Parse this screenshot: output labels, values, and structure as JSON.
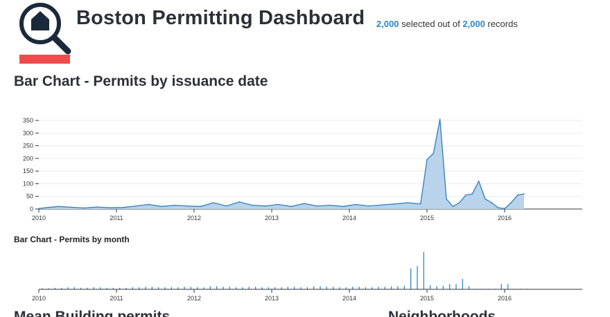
{
  "header": {
    "title": "Boston Permitting Dashboard",
    "selected_count": "2,000",
    "selected_text": " selected out of ",
    "total_count": "2,000",
    "records_text": " records",
    "logo_icon": "house-magnifier-icon",
    "colors": {
      "brand_dark": "#1a2a3a",
      "brand_red": "#f04a4a",
      "accent": "#2d88c8"
    }
  },
  "sections": {
    "main_title": "Bar Chart - Permits by issuance date",
    "month_title": "Bar Chart - Permits by month",
    "bottom_left_title": "Mean Building permits",
    "bottom_right_title": "Neighborhoods"
  },
  "chart_data": [
    {
      "type": "area",
      "title": "Bar Chart - Permits by issuance date",
      "x_ticks": [
        "2010",
        "2011",
        "2012",
        "2013",
        "2014",
        "2015",
        "2016"
      ],
      "y_ticks": [
        "0",
        "50",
        "100",
        "150",
        "200",
        "250",
        "300",
        "350"
      ],
      "ylim": [
        0,
        350
      ],
      "xlim": [
        "2010-01",
        "2016-12"
      ],
      "grid": true,
      "color": "#2d7fc0",
      "fill": "#b9d3ea",
      "x": [
        "2010-01",
        "2010-02",
        "2010-04",
        "2010-06",
        "2010-08",
        "2010-10",
        "2010-12",
        "2011-02",
        "2011-04",
        "2011-06",
        "2011-08",
        "2011-10",
        "2011-12",
        "2012-02",
        "2012-04",
        "2012-06",
        "2012-08",
        "2012-10",
        "2012-12",
        "2013-02",
        "2013-04",
        "2013-06",
        "2013-08",
        "2013-10",
        "2013-12",
        "2014-02",
        "2014-04",
        "2014-06",
        "2014-08",
        "2014-10",
        "2014-12",
        "2015-01",
        "2015-02",
        "2015-03",
        "2015-04",
        "2015-05",
        "2015-06",
        "2015-07",
        "2015-08",
        "2015-09",
        "2015-10",
        "2015-11",
        "2015-12",
        "2016-01",
        "2016-02",
        "2016-03",
        "2016-04"
      ],
      "y": [
        2,
        5,
        10,
        7,
        4,
        8,
        5,
        6,
        12,
        18,
        10,
        15,
        12,
        10,
        25,
        12,
        28,
        15,
        12,
        18,
        10,
        22,
        12,
        15,
        10,
        18,
        12,
        16,
        20,
        25,
        20,
        195,
        220,
        355,
        40,
        10,
        25,
        55,
        60,
        110,
        40,
        25,
        5,
        2,
        25,
        55,
        60
      ]
    },
    {
      "type": "bar",
      "title": "Bar Chart - Permits by month",
      "x_ticks": [
        "2010",
        "2011",
        "2012",
        "2013",
        "2014",
        "2015",
        "2016"
      ],
      "color": "#2d88c8",
      "months": 76,
      "values": [
        2,
        2,
        3,
        3,
        4,
        4,
        3,
        3,
        4,
        4,
        3,
        3,
        3,
        3,
        4,
        4,
        5,
        5,
        4,
        4,
        4,
        4,
        5,
        5,
        4,
        4,
        6,
        6,
        5,
        5,
        4,
        4,
        5,
        5,
        4,
        4,
        4,
        4,
        5,
        5,
        4,
        4,
        6,
        6,
        5,
        5,
        4,
        4,
        5,
        5,
        4,
        4,
        5,
        5,
        6,
        6,
        7,
        40,
        45,
        72,
        8,
        6,
        7,
        10,
        10,
        20,
        6,
        1,
        1,
        1,
        1,
        10,
        10,
        1,
        1,
        1
      ]
    }
  ]
}
